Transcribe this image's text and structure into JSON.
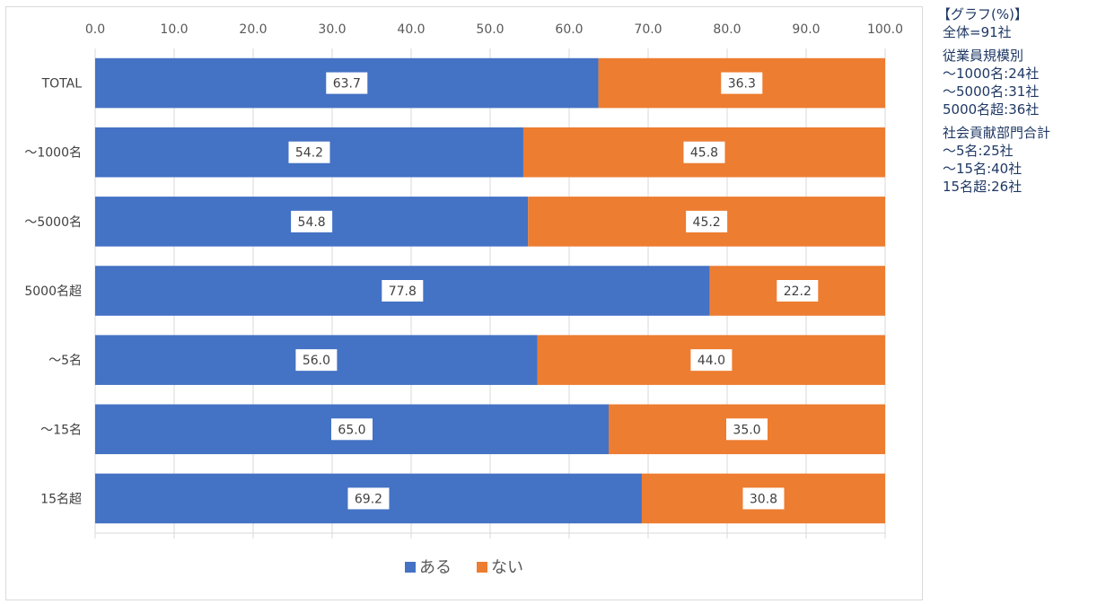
{
  "chart_data": {
    "type": "bar",
    "orientation": "horizontal",
    "stacked": true,
    "categories": [
      "TOTAL",
      "〜1000名",
      "〜5000名",
      "5000名超",
      "〜5名",
      "〜15名",
      "15名超"
    ],
    "series": [
      {
        "name": "ある",
        "color": "#4472c4",
        "values": [
          63.7,
          54.2,
          54.8,
          77.8,
          56.0,
          65.0,
          69.2
        ]
      },
      {
        "name": "ない",
        "color": "#ed7d31",
        "values": [
          36.3,
          45.8,
          45.2,
          22.2,
          44.0,
          35.0,
          30.8
        ]
      }
    ],
    "xlim": [
      0,
      100
    ],
    "x_ticks": [
      "0.0",
      "10.0",
      "20.0",
      "30.0",
      "40.0",
      "50.0",
      "60.0",
      "70.0",
      "80.0",
      "90.0",
      "100.0"
    ],
    "x_axis_position": "top",
    "grid": true,
    "legend_position": "bottom",
    "data_labels": true,
    "title": "",
    "xlabel": "",
    "ylabel": ""
  },
  "note": {
    "title": "【グラフ(%)】",
    "total": "全体=91社",
    "groups": [
      {
        "heading": "従業員規模別",
        "lines": [
          "〜1000名:24社",
          "〜5000名:31社",
          "5000名超:36社"
        ]
      },
      {
        "heading": "社会貢献部門合計",
        "lines": [
          "〜5名:25社",
          "〜15名:40社",
          "15名超:26社"
        ]
      }
    ]
  }
}
